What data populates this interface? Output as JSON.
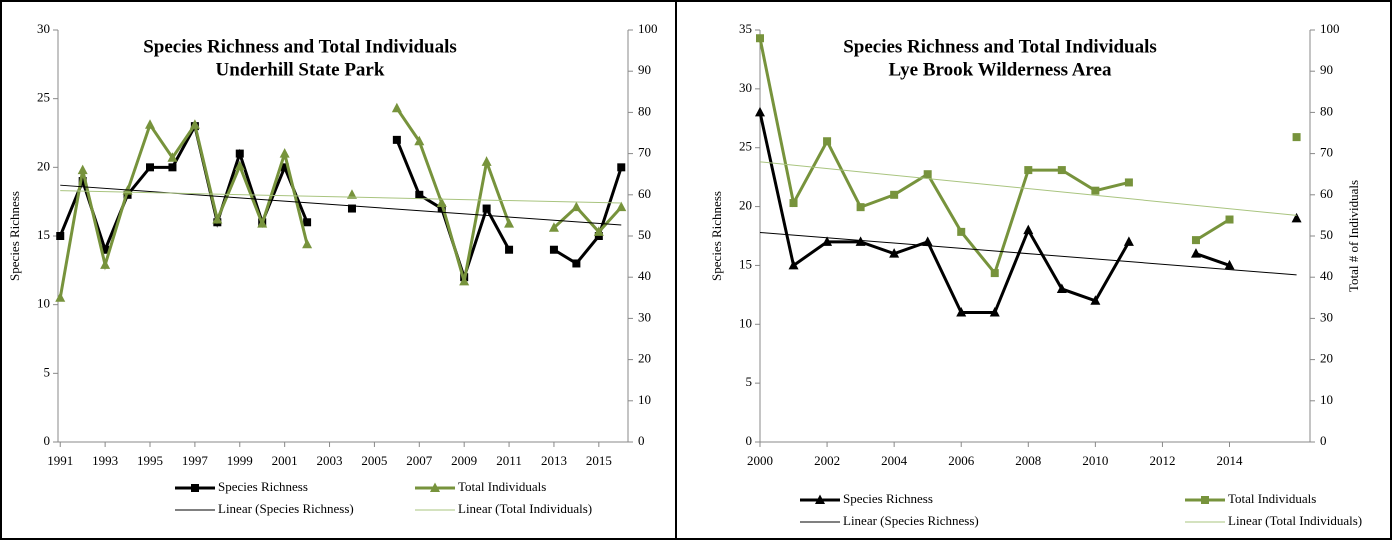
{
  "chart_data": [
    {
      "type": "line",
      "title": "Species Richness and Total Individuals",
      "subtitle": "Underhill State Park",
      "y_label": "Species Richness",
      "x": [
        1991,
        1992,
        1993,
        1994,
        1995,
        1996,
        1997,
        1998,
        1999,
        2000,
        2001,
        2002,
        2003,
        2004,
        2005,
        2006,
        2007,
        2008,
        2009,
        2010,
        2011,
        2012,
        2013,
        2014,
        2015,
        2016
      ],
      "xlim": [
        1990.9,
        2016.3
      ],
      "xticks": [
        1991,
        1993,
        1995,
        1997,
        1999,
        2001,
        2003,
        2005,
        2007,
        2009,
        2011,
        2013,
        2015
      ],
      "ylim": [
        0,
        30
      ],
      "yticks": [
        0,
        5,
        10,
        15,
        20,
        25,
        30
      ],
      "y2lim": [
        0,
        100
      ],
      "y2ticks": [
        0,
        10,
        20,
        30,
        40,
        50,
        60,
        70,
        80,
        90,
        100
      ],
      "series": [
        {
          "name": "Species Richness",
          "color": "#000000",
          "marker": "square",
          "values": [
            15,
            19,
            14,
            18,
            20,
            20,
            23,
            16,
            21,
            16,
            20,
            16,
            null,
            17,
            null,
            22,
            18,
            17,
            12,
            17,
            14,
            null,
            14,
            13,
            15,
            20
          ]
        },
        {
          "name": "Total Individuals",
          "color": "#77933c",
          "marker": "triangle",
          "axis": "y2",
          "values": [
            35,
            66,
            43,
            61,
            77,
            69,
            77,
            54,
            67,
            53,
            70,
            48,
            null,
            60,
            null,
            81,
            73,
            58,
            39,
            68,
            53,
            null,
            52,
            57,
            51,
            57
          ]
        },
        {
          "name": "Linear (Species Richness)",
          "color": "#000000",
          "x": [
            1991,
            2016
          ],
          "values": [
            18.7,
            15.8
          ]
        },
        {
          "name": "Linear (Total Individuals)",
          "color": "#a9c47f",
          "axis": "y2",
          "x": [
            1991,
            2016
          ],
          "values": [
            61,
            58
          ]
        }
      ]
    },
    {
      "type": "line",
      "title": "Species Richness and Total Individuals",
      "subtitle": "Lye Brook Wilderness Area",
      "y_label": "Species Richness",
      "y2_label": "Total # of Individuals",
      "x": [
        2000,
        2001,
        2002,
        2003,
        2004,
        2005,
        2006,
        2007,
        2008,
        2009,
        2010,
        2011,
        2012,
        2013,
        2014,
        2015,
        2016
      ],
      "xlim": [
        2000,
        2016.4
      ],
      "xticks": [
        2000,
        2002,
        2004,
        2006,
        2008,
        2010,
        2012,
        2014
      ],
      "ylim": [
        0,
        35
      ],
      "yticks": [
        0,
        5,
        10,
        15,
        20,
        25,
        30,
        35
      ],
      "y2lim": [
        0,
        100
      ],
      "y2ticks": [
        0,
        10,
        20,
        30,
        40,
        50,
        60,
        70,
        80,
        90,
        100
      ],
      "series": [
        {
          "name": "Species Richness",
          "color": "#000000",
          "marker": "triangle",
          "values": [
            28,
            15,
            17,
            17,
            16,
            17,
            11,
            11,
            18,
            13,
            12,
            17,
            null,
            16,
            15,
            null,
            19
          ]
        },
        {
          "name": "Total Individuals",
          "color": "#77933c",
          "marker": "square",
          "axis": "y2",
          "values": [
            98,
            58,
            73,
            57,
            60,
            65,
            51,
            41,
            66,
            66,
            61,
            63,
            null,
            49,
            54,
            null,
            74
          ]
        },
        {
          "name": "Linear (Species Richness)",
          "color": "#000000",
          "x": [
            2000,
            2016
          ],
          "values": [
            17.8,
            14.2
          ]
        },
        {
          "name": "Linear (Total Individuals)",
          "color": "#a9c47f",
          "axis": "y2",
          "x": [
            2000,
            2016
          ],
          "values": [
            68,
            55
          ]
        }
      ]
    }
  ]
}
